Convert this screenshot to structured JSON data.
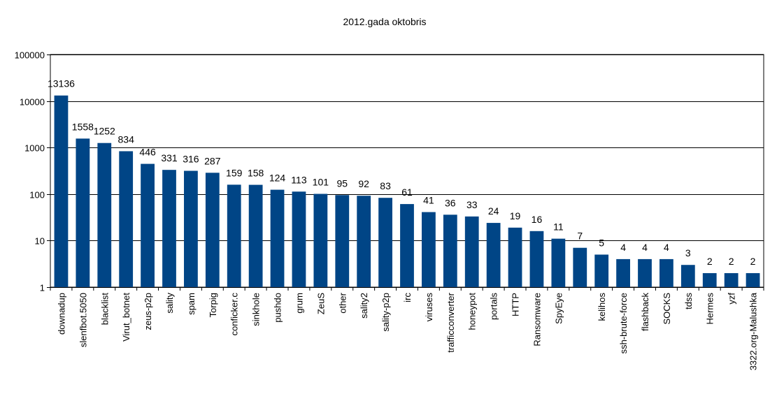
{
  "chart_data": {
    "type": "bar",
    "title": "2012.gada oktobris",
    "xlabel": "",
    "ylabel": "",
    "yscale": "log",
    "ylim": [
      1,
      100000
    ],
    "yticks": [
      "1",
      "10",
      "100",
      "1000",
      "10000",
      "100000"
    ],
    "grid": true,
    "legend": "none",
    "bar_color": "#004586",
    "categories": [
      "downadup",
      "slenfbot.5050",
      "blacklist",
      "Virut_botnet",
      "zeus-p2p",
      "sality",
      "spam",
      "Torpig",
      "conficker.c",
      "sinkhole",
      "pushdo",
      "grum",
      "ZeuS",
      "other",
      "sality2",
      "sality-p2p",
      "irc",
      "viruses",
      "trafficconverter",
      "honeypot",
      "portals",
      "HTTP",
      "Ransomware",
      "SpyEye",
      "",
      "kelihos",
      "ssh-brute-force",
      "flashback",
      "SOCKS",
      "tdss",
      "Hermes",
      "yzf",
      "3322.org-Malushka"
    ],
    "values": [
      13136,
      1558,
      1252,
      834,
      446,
      331,
      316,
      287,
      159,
      158,
      124,
      113,
      101,
      95,
      92,
      83,
      61,
      41,
      36,
      33,
      24,
      19,
      16,
      11,
      7,
      5,
      4,
      4,
      4,
      3,
      2,
      2,
      2
    ]
  }
}
